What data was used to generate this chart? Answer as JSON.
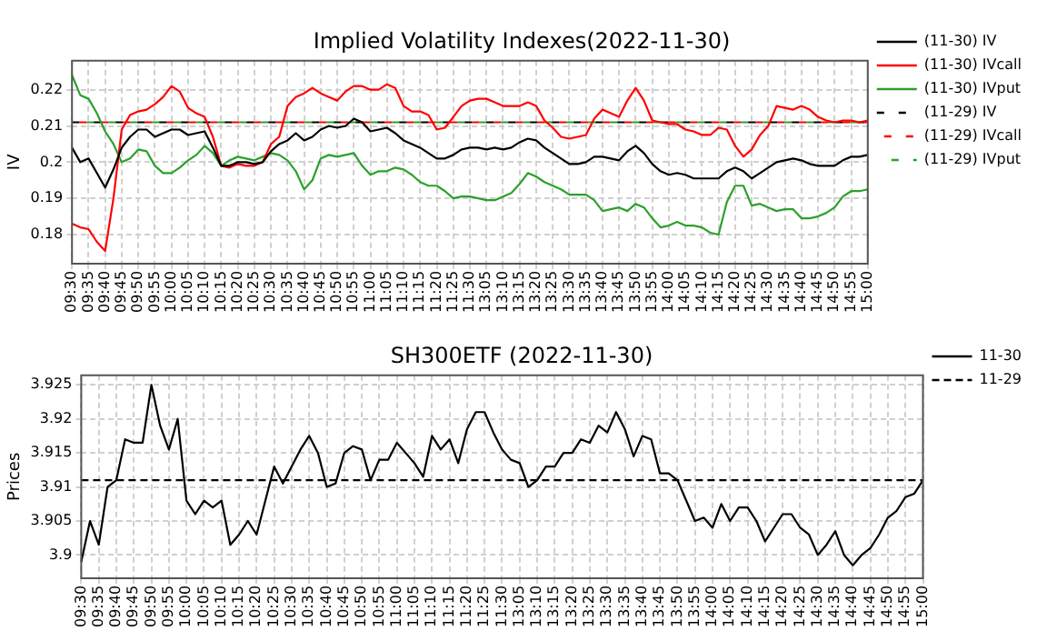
{
  "chart_data": [
    {
      "type": "line",
      "title": "Implied Volatility Indexes(2022-11-30)",
      "ylabel": "IV",
      "categories": [
        "09:30",
        null,
        "09:35",
        null,
        "09:40",
        null,
        "09:45",
        null,
        "09:50",
        null,
        "09:55",
        null,
        "10:00",
        null,
        "10:05",
        null,
        "10:10",
        null,
        "10:15",
        null,
        "10:20",
        null,
        "10:25",
        null,
        "10:30",
        null,
        "10:35",
        null,
        "10:40",
        null,
        "10:45",
        null,
        "10:50",
        null,
        "10:55",
        null,
        "11:00",
        null,
        "11:05",
        null,
        "11:10",
        null,
        "11:15",
        null,
        "11:20",
        null,
        "11:25",
        null,
        "11:30",
        null,
        "13:05",
        null,
        "13:10",
        null,
        "13:15",
        null,
        "13:20",
        null,
        "13:25",
        null,
        "13:30",
        null,
        "13:35",
        null,
        "13:40",
        null,
        "13:45",
        null,
        "13:50",
        null,
        "13:55",
        null,
        "14:00",
        null,
        "14:05",
        null,
        "14:10",
        null,
        "14:15",
        null,
        "14:20",
        null,
        "14:25",
        null,
        "14:30",
        null,
        "14:35",
        null,
        "14:40",
        null,
        "14:45",
        null,
        "14:50",
        null,
        "14:55",
        null,
        "15:00"
      ],
      "series": [
        {
          "name": "(11-30) IV",
          "color": "#000000",
          "line_style": "solid",
          "values": [
            0.204,
            0.2,
            0.201,
            0.197,
            0.193,
            0.198,
            0.204,
            0.207,
            0.209,
            0.209,
            0.207,
            0.208,
            0.209,
            0.209,
            0.2075,
            0.208,
            0.2085,
            0.204,
            0.199,
            0.199,
            0.2,
            0.2,
            0.1995,
            0.2,
            0.203,
            0.205,
            0.206,
            0.208,
            0.206,
            0.207,
            0.209,
            0.21,
            0.2095,
            0.21,
            0.212,
            0.211,
            0.2085,
            0.209,
            0.2095,
            0.208,
            0.206,
            0.205,
            0.204,
            0.2025,
            0.201,
            0.201,
            0.202,
            0.2035,
            0.204,
            0.204,
            0.2035,
            0.204,
            0.2035,
            0.204,
            0.2055,
            0.2065,
            0.206,
            0.204,
            0.2025,
            0.201,
            0.1995,
            0.1995,
            0.2,
            0.2015,
            0.2015,
            0.201,
            0.2005,
            0.203,
            0.2045,
            0.2025,
            0.1995,
            0.1975,
            0.1965,
            0.197,
            0.1965,
            0.1955,
            0.1955,
            0.1955,
            0.1955,
            0.1975,
            0.1985,
            0.1975,
            0.1955,
            0.197,
            0.1985,
            0.2,
            0.2005,
            0.201,
            0.2005,
            0.1995,
            0.199,
            0.199,
            0.199,
            0.2005,
            0.2015,
            0.2015,
            0.202
          ]
        },
        {
          "name": "(11-30) IVcall",
          "color": "#ff0000",
          "line_style": "solid",
          "values": [
            0.183,
            0.182,
            0.1815,
            0.178,
            0.1755,
            0.19,
            0.209,
            0.213,
            0.214,
            0.2145,
            0.216,
            0.218,
            0.221,
            0.2195,
            0.215,
            0.2135,
            0.2125,
            0.207,
            0.199,
            0.1985,
            0.1995,
            0.199,
            0.199,
            0.2,
            0.205,
            0.207,
            0.2155,
            0.218,
            0.219,
            0.2205,
            0.219,
            0.218,
            0.217,
            0.2195,
            0.221,
            0.221,
            0.22,
            0.22,
            0.2215,
            0.2205,
            0.2155,
            0.214,
            0.214,
            0.213,
            0.209,
            0.2095,
            0.2125,
            0.2155,
            0.217,
            0.2175,
            0.2175,
            0.2165,
            0.2155,
            0.2155,
            0.2155,
            0.2165,
            0.2155,
            0.2115,
            0.2095,
            0.207,
            0.2065,
            0.207,
            0.2075,
            0.212,
            0.2145,
            0.2135,
            0.2125,
            0.217,
            0.2205,
            0.217,
            0.2115,
            0.211,
            0.2105,
            0.2105,
            0.209,
            0.2085,
            0.2075,
            0.2075,
            0.2095,
            0.209,
            0.2045,
            0.2015,
            0.2035,
            0.2075,
            0.21,
            0.2155,
            0.215,
            0.2145,
            0.2155,
            0.2145,
            0.2125,
            0.2115,
            0.211,
            0.2115,
            0.2115,
            0.211,
            0.2115
          ]
        },
        {
          "name": "(11-30) IVput",
          "color": "#2ca02c",
          "line_style": "solid",
          "values": [
            0.224,
            0.2185,
            0.2175,
            0.2135,
            0.2085,
            0.205,
            0.2,
            0.201,
            0.2035,
            0.203,
            0.199,
            0.197,
            0.197,
            0.1985,
            0.2005,
            0.202,
            0.2045,
            0.2025,
            0.199,
            0.2005,
            0.2015,
            0.201,
            0.2005,
            0.2015,
            0.2025,
            0.202,
            0.2005,
            0.1975,
            0.1925,
            0.195,
            0.201,
            0.202,
            0.2015,
            0.202,
            0.2025,
            0.199,
            0.1965,
            0.1975,
            0.1975,
            0.1985,
            0.198,
            0.1965,
            0.1945,
            0.1935,
            0.1935,
            0.192,
            0.19,
            0.1905,
            0.1905,
            0.19,
            0.1895,
            0.1895,
            0.1905,
            0.1915,
            0.194,
            0.197,
            0.196,
            0.1945,
            0.1935,
            0.1925,
            0.191,
            0.191,
            0.191,
            0.1895,
            0.1865,
            0.187,
            0.1875,
            0.1865,
            0.1885,
            0.1875,
            0.1845,
            0.182,
            0.1825,
            0.1835,
            0.1825,
            0.1825,
            0.182,
            0.1805,
            0.18,
            0.189,
            0.1935,
            0.1935,
            0.188,
            0.1885,
            0.1875,
            0.1865,
            0.187,
            0.187,
            0.1845,
            0.1845,
            0.185,
            0.186,
            0.1875,
            0.1905,
            0.192,
            0.192,
            0.1925
          ]
        },
        {
          "name": "(11-29) IV",
          "color": "#000000",
          "line_style": "dashed",
          "values": [
            0.211,
            0.211,
            0.211,
            0.211,
            0.211,
            0.211,
            0.211,
            0.211,
            0.211,
            0.211,
            0.211,
            0.211,
            0.211,
            0.211,
            0.211,
            0.211,
            0.211,
            0.211,
            0.211,
            0.211,
            0.211,
            0.211,
            0.211,
            0.211,
            0.211,
            0.211,
            0.211,
            0.211,
            0.211,
            0.211,
            0.211,
            0.211,
            0.211,
            0.211,
            0.211,
            0.211,
            0.211,
            0.211,
            0.211,
            0.211,
            0.211,
            0.211,
            0.211,
            0.211,
            0.211,
            0.211,
            0.211,
            0.211,
            0.211,
            0.211,
            0.211,
            0.211,
            0.211,
            0.211,
            0.211,
            0.211,
            0.211,
            0.211,
            0.211,
            0.211,
            0.211,
            0.211,
            0.211,
            0.211,
            0.211,
            0.211,
            0.211,
            0.211,
            0.211,
            0.211,
            0.211,
            0.211,
            0.211,
            0.211,
            0.211,
            0.211,
            0.211,
            0.211,
            0.211,
            0.211,
            0.211,
            0.211,
            0.211,
            0.211,
            0.211,
            0.211,
            0.211,
            0.211,
            0.211,
            0.211,
            0.211,
            0.211,
            0.211,
            0.211,
            0.211,
            0.211,
            0.211
          ]
        },
        {
          "name": "(11-29) IVcall",
          "color": "#ff0000",
          "line_style": "dashed",
          "values": [
            0.211,
            0.211,
            0.211,
            0.211,
            0.211,
            0.211,
            0.211,
            0.211,
            0.211,
            0.211,
            0.211,
            0.211,
            0.211,
            0.211,
            0.211,
            0.211,
            0.211,
            0.211,
            0.211,
            0.211,
            0.211,
            0.211,
            0.211,
            0.211,
            0.211,
            0.211,
            0.211,
            0.211,
            0.211,
            0.211,
            0.211,
            0.211,
            0.211,
            0.211,
            0.211,
            0.211,
            0.211,
            0.211,
            0.211,
            0.211,
            0.211,
            0.211,
            0.211,
            0.211,
            0.211,
            0.211,
            0.211,
            0.211,
            0.211,
            0.211,
            0.211,
            0.211,
            0.211,
            0.211,
            0.211,
            0.211,
            0.211,
            0.211,
            0.211,
            0.211,
            0.211,
            0.211,
            0.211,
            0.211,
            0.211,
            0.211,
            0.211,
            0.211,
            0.211,
            0.211,
            0.211,
            0.211,
            0.211,
            0.211,
            0.211,
            0.211,
            0.211,
            0.211,
            0.211,
            0.211,
            0.211,
            0.211,
            0.211,
            0.211,
            0.211,
            0.211,
            0.211,
            0.211,
            0.211,
            0.211,
            0.211,
            0.211,
            0.211,
            0.211,
            0.211,
            0.211,
            0.211
          ]
        },
        {
          "name": "(11-29) IVput",
          "color": "#2ca02c",
          "line_style": "dashed",
          "values": [
            0.211,
            0.211,
            0.211,
            0.211,
            0.211,
            0.211,
            0.211,
            0.211,
            0.211,
            0.211,
            0.211,
            0.211,
            0.211,
            0.211,
            0.211,
            0.211,
            0.211,
            0.211,
            0.211,
            0.211,
            0.211,
            0.211,
            0.211,
            0.211,
            0.211,
            0.211,
            0.211,
            0.211,
            0.211,
            0.211,
            0.211,
            0.211,
            0.211,
            0.211,
            0.211,
            0.211,
            0.211,
            0.211,
            0.211,
            0.211,
            0.211,
            0.211,
            0.211,
            0.211,
            0.211,
            0.211,
            0.211,
            0.211,
            0.211,
            0.211,
            0.211,
            0.211,
            0.211,
            0.211,
            0.211,
            0.211,
            0.211,
            0.211,
            0.211,
            0.211,
            0.211,
            0.211,
            0.211,
            0.211,
            0.211,
            0.211,
            0.211,
            0.211,
            0.211,
            0.211,
            0.211,
            0.211,
            0.211,
            0.211,
            0.211,
            0.211,
            0.211,
            0.211,
            0.211,
            0.211,
            0.211,
            0.211,
            0.211,
            0.211,
            0.211,
            0.211,
            0.211,
            0.211,
            0.211,
            0.211,
            0.211,
            0.211,
            0.211,
            0.211,
            0.211,
            0.211,
            0.211
          ]
        }
      ],
      "ylim": [
        0.172,
        0.228
      ],
      "yticks": [
        0.18,
        0.19,
        0.2,
        0.21,
        0.22
      ],
      "grid": true,
      "legend": "right"
    },
    {
      "type": "line",
      "title": "SH300ETF (2022-11-30)",
      "ylabel": "Prices",
      "categories": [
        "09:30",
        null,
        "09:35",
        null,
        "09:40",
        null,
        "09:45",
        null,
        "09:50",
        null,
        "09:55",
        null,
        "10:00",
        null,
        "10:05",
        null,
        "10:10",
        null,
        "10:15",
        null,
        "10:20",
        null,
        "10:25",
        null,
        "10:30",
        null,
        "10:35",
        null,
        "10:40",
        null,
        "10:45",
        null,
        "10:50",
        null,
        "10:55",
        null,
        "11:00",
        null,
        "11:05",
        null,
        "11:10",
        null,
        "11:15",
        null,
        "11:20",
        null,
        "11:25",
        null,
        "11:30",
        null,
        "13:05",
        null,
        "13:10",
        null,
        "13:15",
        null,
        "13:20",
        null,
        "13:25",
        null,
        "13:30",
        null,
        "13:35",
        null,
        "13:40",
        null,
        "13:45",
        null,
        "13:50",
        null,
        "13:55",
        null,
        "14:00",
        null,
        "14:05",
        null,
        "14:10",
        null,
        "14:15",
        null,
        "14:20",
        null,
        "14:25",
        null,
        "14:30",
        null,
        "14:35",
        null,
        "14:40",
        null,
        "14:45",
        null,
        "14:50",
        null,
        "14:55",
        null,
        "15:00"
      ],
      "series": [
        {
          "name": "11-30",
          "color": "#000000",
          "line_style": "solid",
          "values": [
            3.899,
            3.905,
            3.9015,
            3.91,
            3.911,
            3.917,
            3.9165,
            3.9165,
            3.925,
            3.919,
            3.9155,
            3.92,
            3.908,
            3.906,
            3.908,
            3.907,
            3.908,
            3.9015,
            3.903,
            3.905,
            3.903,
            3.908,
            3.913,
            3.9105,
            3.913,
            3.9155,
            3.9175,
            3.915,
            3.91,
            3.9105,
            3.915,
            3.916,
            3.9155,
            3.911,
            3.914,
            3.914,
            3.9165,
            3.915,
            3.9135,
            3.9115,
            3.9175,
            3.9155,
            3.917,
            3.9135,
            3.9185,
            3.921,
            3.921,
            3.918,
            3.9155,
            3.914,
            3.9135,
            3.91,
            3.911,
            3.913,
            3.913,
            3.915,
            3.915,
            3.917,
            3.9165,
            3.919,
            3.918,
            3.921,
            3.9185,
            3.9145,
            3.9175,
            3.917,
            3.912,
            3.912,
            3.911,
            3.908,
            3.905,
            3.9055,
            3.904,
            3.9075,
            3.905,
            3.907,
            3.907,
            3.905,
            3.902,
            3.904,
            3.906,
            3.906,
            3.904,
            3.903,
            3.9,
            3.9015,
            3.9035,
            3.9,
            3.8985,
            3.9,
            3.901,
            3.903,
            3.9055,
            3.9065,
            3.9085,
            3.909,
            3.911
          ]
        },
        {
          "name": "11-29",
          "color": "#000000",
          "line_style": "dashed",
          "values": [
            3.911,
            3.911,
            3.911,
            3.911,
            3.911,
            3.911,
            3.911,
            3.911,
            3.911,
            3.911,
            3.911,
            3.911,
            3.911,
            3.911,
            3.911,
            3.911,
            3.911,
            3.911,
            3.911,
            3.911,
            3.911,
            3.911,
            3.911,
            3.911,
            3.911,
            3.911,
            3.911,
            3.911,
            3.911,
            3.911,
            3.911,
            3.911,
            3.911,
            3.911,
            3.911,
            3.911,
            3.911,
            3.911,
            3.911,
            3.911,
            3.911,
            3.911,
            3.911,
            3.911,
            3.911,
            3.911,
            3.911,
            3.911,
            3.911,
            3.911,
            3.911,
            3.911,
            3.911,
            3.911,
            3.911,
            3.911,
            3.911,
            3.911,
            3.911,
            3.911,
            3.911,
            3.911,
            3.911,
            3.911,
            3.911,
            3.911,
            3.911,
            3.911,
            3.911,
            3.911,
            3.911,
            3.911,
            3.911,
            3.911,
            3.911,
            3.911,
            3.911,
            3.911,
            3.911,
            3.911,
            3.911,
            3.911,
            3.911,
            3.911,
            3.911,
            3.911,
            3.911,
            3.911,
            3.911,
            3.911,
            3.911,
            3.911,
            3.911,
            3.911,
            3.911,
            3.911,
            3.911
          ]
        }
      ],
      "ylim": [
        3.8966,
        3.9264
      ],
      "yticks": [
        3.9,
        3.905,
        3.91,
        3.915,
        3.92,
        3.925
      ],
      "grid": true,
      "legend": "right"
    }
  ]
}
